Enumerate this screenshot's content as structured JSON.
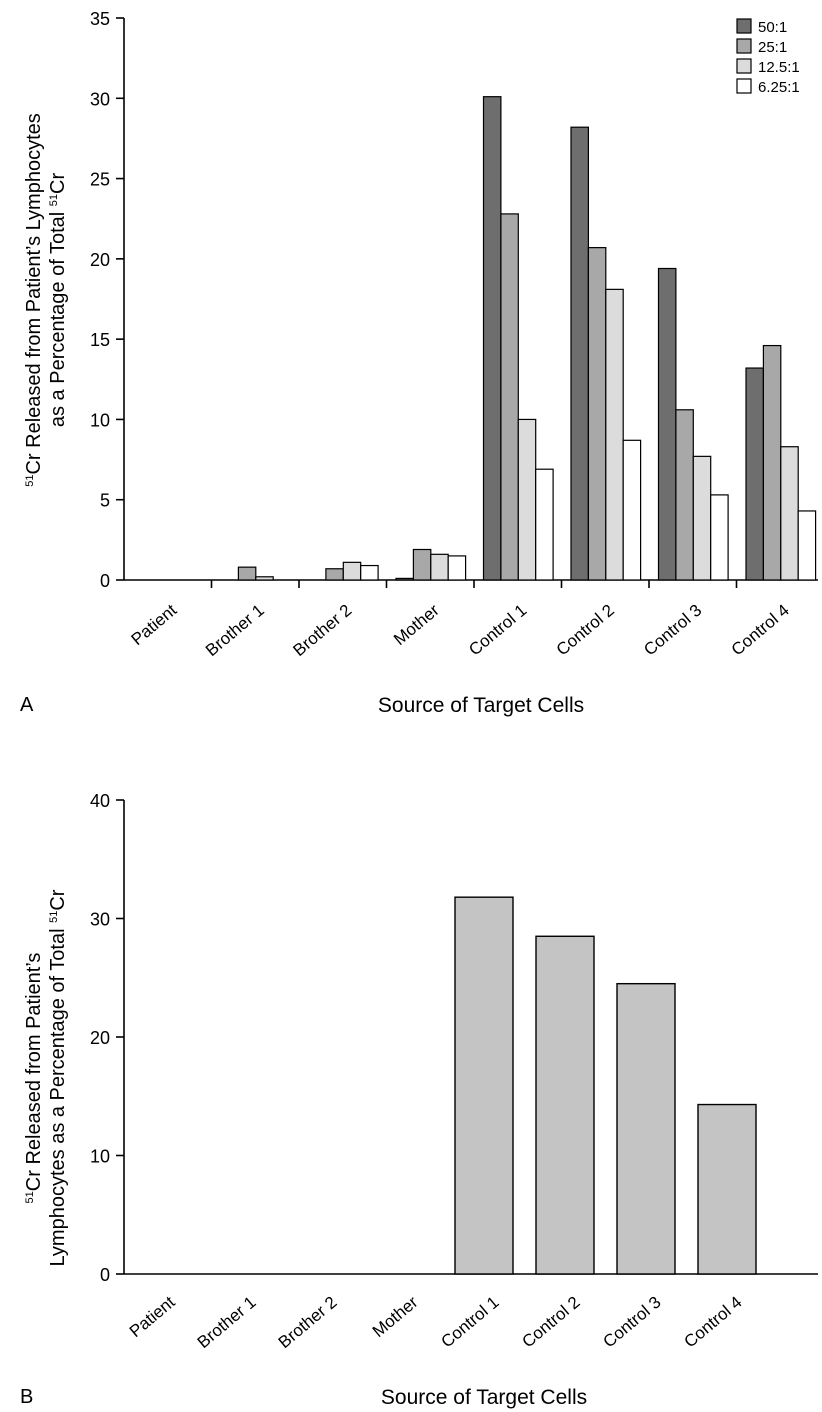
{
  "chart_data": [
    {
      "type": "bar",
      "panel_label": "A",
      "title": "",
      "xlabel": "Source of Target Cells",
      "ylabel_line1": "Cr Released from Patient’s Lymphocytes",
      "ylabel_line1_sup": "51",
      "ylabel_line2": "as a Percentage of Total ",
      "ylabel_line2_sup": "51",
      "ylabel_line2_tail": "Cr",
      "ylim": [
        0,
        35
      ],
      "yticks": [
        0,
        5,
        10,
        15,
        20,
        25,
        30,
        35
      ],
      "ytick_labels": [
        "0",
        "5",
        "10",
        "15",
        "20",
        "25",
        "30",
        "35"
      ],
      "categories": [
        "Patient",
        "Brother 1",
        "Brother 2",
        "Mother",
        "Control 1",
        "Control 2",
        "Control 3",
        "Control 4"
      ],
      "legend_position": "top-right",
      "grid": false,
      "series": [
        {
          "name": "50:1",
          "color": "#6e6e6e",
          "values": [
            0,
            0,
            0,
            0.1,
            30.1,
            28.2,
            19.4,
            13.2
          ]
        },
        {
          "name": "25:1",
          "color": "#a8a8a8",
          "values": [
            0,
            0.8,
            0.7,
            1.9,
            22.8,
            20.7,
            10.6,
            14.6
          ]
        },
        {
          "name": "12.5:1",
          "color": "#dcdcdc",
          "values": [
            0,
            0.2,
            1.1,
            1.6,
            10.0,
            18.1,
            7.7,
            8.3
          ]
        },
        {
          "name": "6.25:1",
          "color": "#ffffff",
          "values": [
            0,
            0,
            0.9,
            1.5,
            6.9,
            8.7,
            5.3,
            4.3
          ]
        }
      ]
    },
    {
      "type": "bar",
      "panel_label": "B",
      "title": "",
      "xlabel": "Source of Target Cells",
      "ylabel_line1": "Cr Released from Patient’s",
      "ylabel_line1_sup": "51",
      "ylabel_line2": "Lymphocytes as a Percentage of Total ",
      "ylabel_line2_sup": "51",
      "ylabel_line2_tail": "Cr",
      "ylim": [
        0,
        40
      ],
      "yticks": [
        0,
        10,
        20,
        30,
        40
      ],
      "ytick_labels": [
        "0",
        "10",
        "20",
        "30",
        "40"
      ],
      "categories": [
        "Patient",
        "Brother 1",
        "Brother 2",
        "Mother",
        "Control 1",
        "Control 2",
        "Control 3",
        "Control 4"
      ],
      "legend_position": "none",
      "grid": false,
      "series": [
        {
          "color": "#c4c4c4",
          "values": [
            0,
            0,
            0,
            0,
            31.8,
            28.5,
            24.5,
            14.3
          ]
        }
      ]
    }
  ]
}
